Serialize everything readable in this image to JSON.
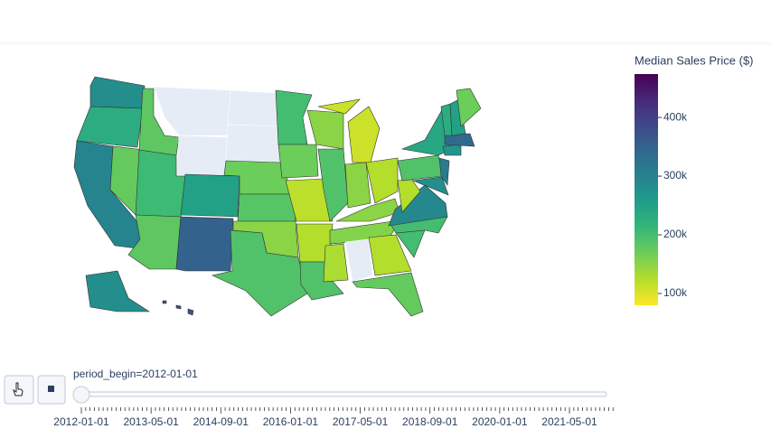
{
  "chart_data": {
    "type": "choropleth",
    "values": [
      280000,
      230000,
      295000,
      175000,
      180000,
      null,
      null,
      205000,
      250000,
      180000,
      350000,
      null,
      null,
      170000,
      185000,
      150000,
      190000,
      200000,
      170000,
      120000,
      125000,
      190000,
      150000,
      190000,
      110000,
      150000,
      125000,
      150000,
      155000,
      130000,
      null,
      125000,
      175000,
      200000,
      200000,
      290000,
      125000,
      190000,
      240000,
      280000,
      310000,
      270000,
      340000,
      230000,
      250000,
      170000,
      280000,
      380000
    ],
    "colorscale": [
      "#440154",
      "#482878",
      "#3e4989",
      "#31688e",
      "#26828e",
      "#1f9e89",
      "#35b779",
      "#6ece58",
      "#b5de2b",
      "#fde725"
    ],
    "reversescale": true,
    "colorbar": {
      "title": "Median Sales Price ($)",
      "lim": [
        80000,
        474000
      ],
      "ticks": [
        {
          "value": 100000,
          "label": "100k"
        },
        {
          "value": 200000,
          "label": "200k"
        },
        {
          "value": 300000,
          "label": "300k"
        },
        {
          "value": 400000,
          "label": "400k"
        }
      ]
    }
  },
  "slider": {
    "current_label": "period_begin=2012-01-01",
    "tick_labels": [
      "2012-01-01",
      "2013-05-01",
      "2014-09-01",
      "2016-01-01",
      "2017-05-01",
      "2018-09-01",
      "2020-01-01",
      "2021-05-01"
    ]
  }
}
